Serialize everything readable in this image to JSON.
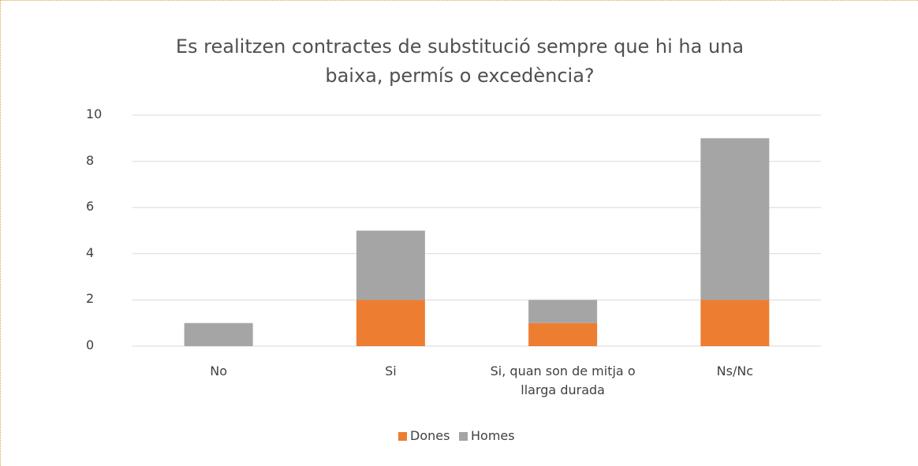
{
  "chart_data": {
    "type": "stacked_bar",
    "title": "Es realitzen contractes de substitució sempre que hi ha una baixa, permís o excedència?",
    "categories": [
      "No",
      "Si",
      "Si, quan son de mitja o llarga durada",
      "Ns/Nc"
    ],
    "series": [
      {
        "name": "Dones",
        "color": "#ed7d31",
        "values": [
          0,
          2,
          1,
          2
        ]
      },
      {
        "name": "Homes",
        "color": "#a5a5a5",
        "values": [
          1,
          3,
          1,
          7
        ]
      }
    ],
    "ylim": [
      0,
      10
    ],
    "yticks": [
      0,
      2,
      4,
      6,
      8,
      10
    ],
    "grid": true,
    "legend": "bottom"
  }
}
